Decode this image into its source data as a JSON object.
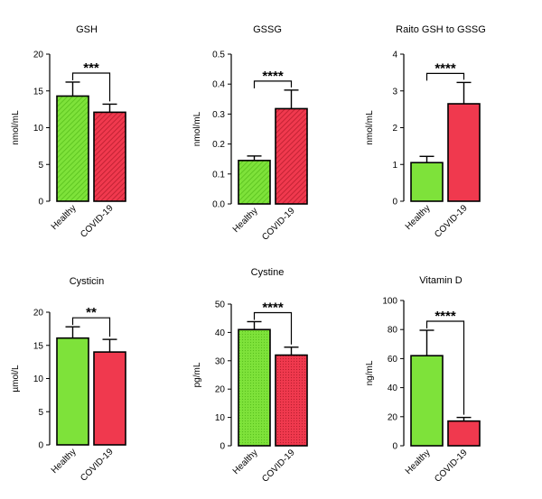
{
  "colors": {
    "healthy": "#7ee23a",
    "healthy_dark": "#58c01c",
    "covid": "#f0394e",
    "covid_dark": "#b81d2e",
    "axis": "#000000"
  },
  "chart_data": [
    {
      "type": "bar",
      "title": "GSH",
      "ylabel": "nmol/mL",
      "ylim": [
        0,
        20
      ],
      "yticks": [
        "0",
        "5",
        "10",
        "15",
        "20"
      ],
      "categories": [
        "Healthy",
        "COVID-19"
      ],
      "values": [
        14.3,
        12.1
      ],
      "errors": [
        1.9,
        1.1
      ],
      "pattern": "hatch",
      "significance": "***"
    },
    {
      "type": "bar",
      "title": "GSSG",
      "ylabel": "nmol/mL",
      "ylim": [
        0,
        0.5
      ],
      "yticks": [
        "0.0",
        "0.1",
        "0.2",
        "0.3",
        "0.4",
        "0.5"
      ],
      "categories": [
        "Healthy",
        "COVID-19"
      ],
      "values": [
        0.145,
        0.318
      ],
      "errors": [
        0.015,
        0.062
      ],
      "pattern": "hatch",
      "significance": "****"
    },
    {
      "type": "bar",
      "title": "Raito GSH to GSSG",
      "ylabel": "nmol/mL",
      "ylim": [
        0,
        4
      ],
      "yticks": [
        "0",
        "1",
        "2",
        "3",
        "4"
      ],
      "categories": [
        "Healthy",
        "COVID-19"
      ],
      "values": [
        1.05,
        2.65
      ],
      "errors": [
        0.17,
        0.58
      ],
      "pattern": "solid",
      "significance": "****"
    },
    {
      "type": "bar",
      "title": "Cysticin",
      "ylabel": "µmol/L",
      "ylim": [
        0,
        20
      ],
      "yticks": [
        "0",
        "5",
        "10",
        "15",
        "20"
      ],
      "categories": [
        "Healthy",
        "COVID-19"
      ],
      "values": [
        16.1,
        14.0
      ],
      "errors": [
        1.7,
        1.9
      ],
      "pattern": "solid",
      "significance": "**"
    },
    {
      "type": "bar",
      "title": "Cystine",
      "ylabel": "pg/mL",
      "ylim": [
        0,
        50
      ],
      "yticks": [
        "0",
        "10",
        "20",
        "30",
        "40",
        "50"
      ],
      "categories": [
        "Healthy",
        "COVID-19"
      ],
      "values": [
        41.0,
        32.0
      ],
      "errors": [
        2.8,
        2.8
      ],
      "pattern": "dots",
      "significance": "****"
    },
    {
      "type": "bar",
      "title": "Vitamin D",
      "ylabel": "ng/mL",
      "ylim": [
        0,
        100
      ],
      "yticks": [
        "0",
        "20",
        "40",
        "60",
        "80",
        "100"
      ],
      "categories": [
        "Healthy",
        "COVID-19"
      ],
      "values": [
        62.0,
        17.0
      ],
      "errors": [
        17.5,
        2.5
      ],
      "pattern": "solid",
      "significance": "****"
    }
  ]
}
